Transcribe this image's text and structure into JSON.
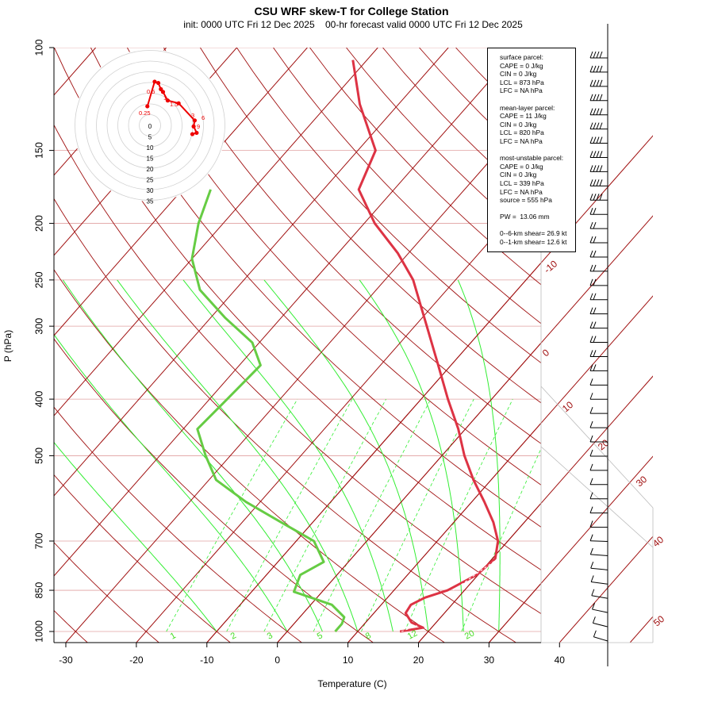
{
  "header": {
    "title": "CSU WRF skew-T for College Station",
    "subtitle": "init: 0000 UTC Fri 12 Dec 2025    00-hr forecast valid 0000 UTC Fri 12 Dec 2025"
  },
  "info_box": {
    "lines": [
      "surface parcel:",
      "CAPE = 0 J/kg",
      "CIN = 0 J/kg",
      "LCL = 873 hPa",
      "LFC = NA hPa",
      "",
      "mean-layer parcel:",
      "CAPE = 11 J/kg",
      "CIN = 0 J/kg",
      "LCL = 820 hPa",
      "LFC = NA hPa",
      "",
      "most-unstable parcel:",
      "CAPE = 0 J/kg",
      "CIN = 0 J/kg",
      "LCL = 339 hPa",
      "LFC = NA hPa",
      "source = 555 hPa",
      "",
      "PW =  13.06 mm",
      "",
      "0--6-km shear= 26.9 kt",
      "0--1-km shear= 12.6 kt"
    ]
  },
  "colors": {
    "temperature": "#dd3344",
    "dewpoint": "#66cc44",
    "isotherm": "#a01010",
    "mixing_ratio": "#33ee33",
    "isobar": "#e0a0a0",
    "hodograph": "#ee0000"
  },
  "chart_data": {
    "type": "line",
    "xlabel": "Temperature (C)",
    "ylabel": "P (hPa)",
    "xlim": [
      -33,
      45
    ],
    "ylim": [
      1000,
      100
    ],
    "x_ticks": [
      "-30",
      "-20",
      "-10",
      "0",
      "10",
      "20",
      "30",
      "40"
    ],
    "pressure_levels": [
      100,
      150,
      200,
      250,
      300,
      400,
      500,
      700,
      850,
      1000
    ],
    "pressure_labels": [
      "100",
      "150",
      "200",
      "250",
      "300",
      "400",
      "500",
      "700",
      "850",
      "1000"
    ],
    "isotherm_labels": [
      "-10",
      "0",
      "10",
      "20",
      "30",
      "40",
      "50"
    ],
    "mixing_ratio_labels": [
      "1",
      "2",
      "3",
      "5",
      "8",
      "12",
      "20"
    ],
    "temperature": [
      {
        "p": 1000,
        "t": 16.0
      },
      {
        "p": 985,
        "t": 18.8
      },
      {
        "p": 965,
        "t": 16.5
      },
      {
        "p": 930,
        "t": 14.5
      },
      {
        "p": 900,
        "t": 14.2
      },
      {
        "p": 875,
        "t": 15.3
      },
      {
        "p": 850,
        "t": 17.6
      },
      {
        "p": 800,
        "t": 19.8
      },
      {
        "p": 750,
        "t": 20.4
      },
      {
        "p": 700,
        "t": 18.6
      },
      {
        "p": 650,
        "t": 15.6
      },
      {
        "p": 600,
        "t": 11.8
      },
      {
        "p": 550,
        "t": 7.5
      },
      {
        "p": 500,
        "t": 3.2
      },
      {
        "p": 450,
        "t": -1.0
      },
      {
        "p": 400,
        "t": -6.2
      },
      {
        "p": 350,
        "t": -11.8
      },
      {
        "p": 300,
        "t": -18.3
      },
      {
        "p": 250,
        "t": -26.0
      },
      {
        "p": 225,
        "t": -31.5
      },
      {
        "p": 200,
        "t": -38.5
      },
      {
        "p": 175,
        "t": -45.0
      },
      {
        "p": 150,
        "t": -47.5
      },
      {
        "p": 125,
        "t": -55.5
      },
      {
        "p": 105,
        "t": -62.0
      }
    ],
    "dewpoint": [
      {
        "p": 1000,
        "t": 6.8
      },
      {
        "p": 970,
        "t": 6.8
      },
      {
        "p": 945,
        "t": 6.3
      },
      {
        "p": 900,
        "t": 3.0
      },
      {
        "p": 855,
        "t": -4.0
      },
      {
        "p": 800,
        "t": -5.2
      },
      {
        "p": 760,
        "t": -3.5
      },
      {
        "p": 700,
        "t": -7.5
      },
      {
        "p": 650,
        "t": -14.5
      },
      {
        "p": 600,
        "t": -22.0
      },
      {
        "p": 550,
        "t": -29.0
      },
      {
        "p": 500,
        "t": -33.5
      },
      {
        "p": 450,
        "t": -38.0
      },
      {
        "p": 400,
        "t": -37.5
      },
      {
        "p": 350,
        "t": -37.0
      },
      {
        "p": 320,
        "t": -41.0
      },
      {
        "p": 290,
        "t": -48.0
      },
      {
        "p": 260,
        "t": -55.0
      },
      {
        "p": 230,
        "t": -60.0
      },
      {
        "p": 200,
        "t": -63.5
      },
      {
        "p": 175,
        "t": -66.0
      }
    ],
    "hodograph": {
      "ring_labels": [
        "0",
        "5",
        "10",
        "15",
        "20",
        "25",
        "30",
        "35"
      ],
      "point_labels": [
        "0.5",
        "1",
        "1.5",
        "3",
        "6",
        "9",
        "0.25"
      ],
      "points": [
        {
          "u": -1.2,
          "v": 8.9
        },
        {
          "u": 2.2,
          "v": 20.4
        },
        {
          "u": 3.9,
          "v": 19.8
        },
        {
          "u": 5.1,
          "v": 16.9
        },
        {
          "u": 6.1,
          "v": 15.6
        },
        {
          "u": 8.3,
          "v": 11.6
        },
        {
          "u": 13.4,
          "v": 10.3
        },
        {
          "u": 20.9,
          "v": 2.3
        },
        {
          "u": 20.4,
          "v": -0.5
        },
        {
          "u": 21.8,
          "v": -3.5
        },
        {
          "u": 19.8,
          "v": -4.1
        }
      ]
    },
    "wind_barbs_count": 42
  }
}
